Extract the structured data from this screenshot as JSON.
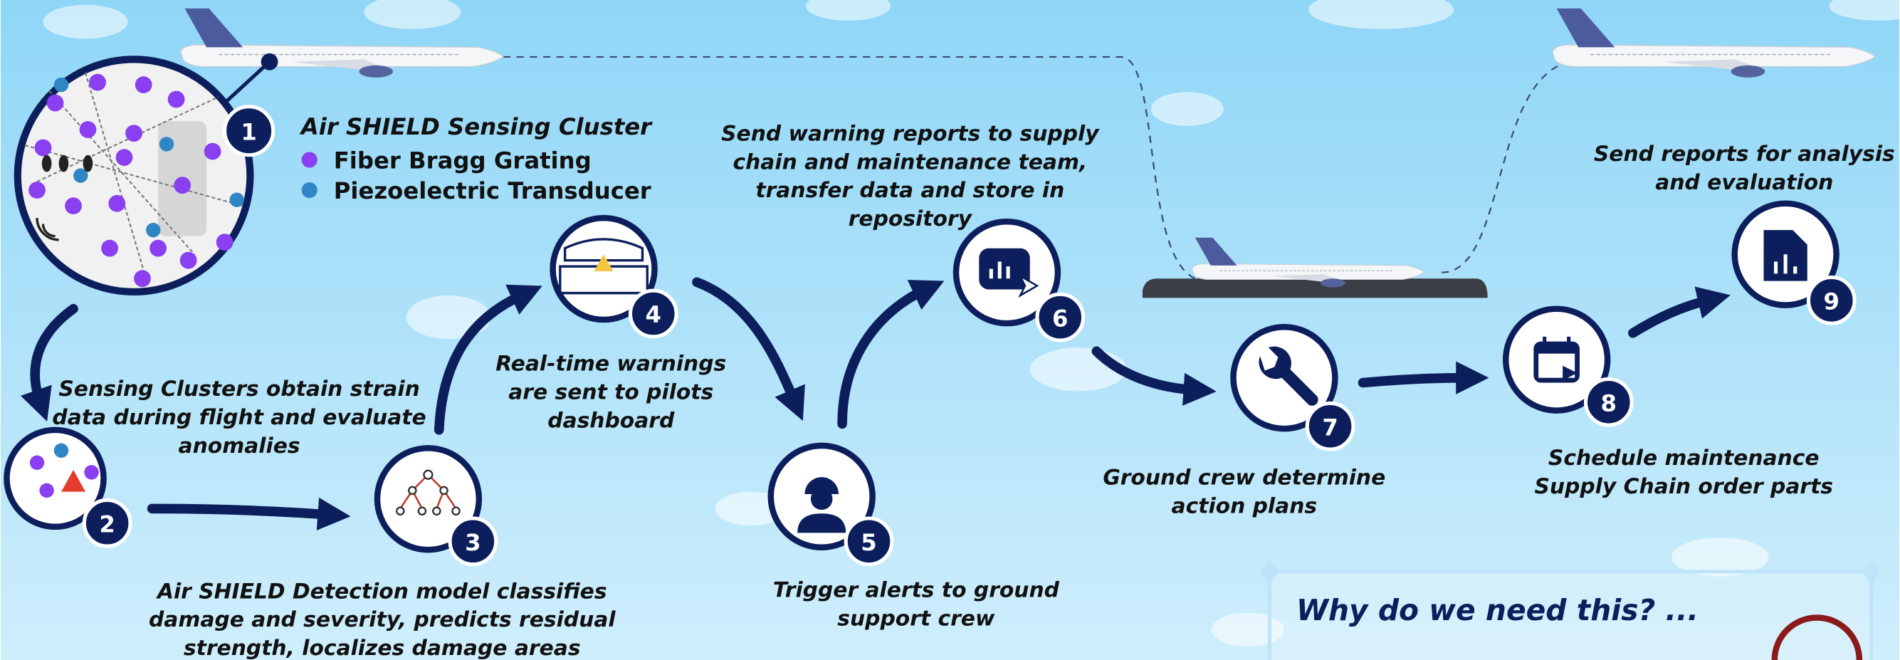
{
  "cluster": {
    "title": "Air SHIELD Sensing Cluster",
    "legend": [
      {
        "label": "Fiber Bragg Grating",
        "color": "#8a3ff0"
      },
      {
        "label": "Piezoelectric Transducer",
        "color": "#2f86c4"
      }
    ]
  },
  "steps": [
    {
      "number": "1"
    },
    {
      "number": "2",
      "caption": [
        "Sensing Clusters obtain strain",
        "data during flight and evaluate",
        "anomalies"
      ]
    },
    {
      "number": "3",
      "caption": [
        "Air SHIELD Detection model classifies",
        "damage and severity, predicts residual",
        "strength, localizes damage areas"
      ]
    },
    {
      "number": "4",
      "caption": [
        "Real-time warnings",
        "are sent to pilots",
        "dashboard"
      ]
    },
    {
      "number": "5",
      "caption": [
        "Trigger alerts to ground",
        "support crew"
      ]
    },
    {
      "number": "6",
      "caption": [
        "Send warning reports to supply",
        "chain and maintenance team,",
        "transfer data and store in",
        "repository"
      ]
    },
    {
      "number": "7",
      "caption": [
        "Ground crew determine",
        "action plans"
      ]
    },
    {
      "number": "8",
      "caption": [
        "Schedule maintenance",
        "Supply Chain order parts"
      ]
    },
    {
      "number": "9",
      "caption": [
        "Send reports for analysis",
        "and evaluation"
      ]
    }
  ],
  "panel": {
    "title": "Why do we need this? ..."
  }
}
